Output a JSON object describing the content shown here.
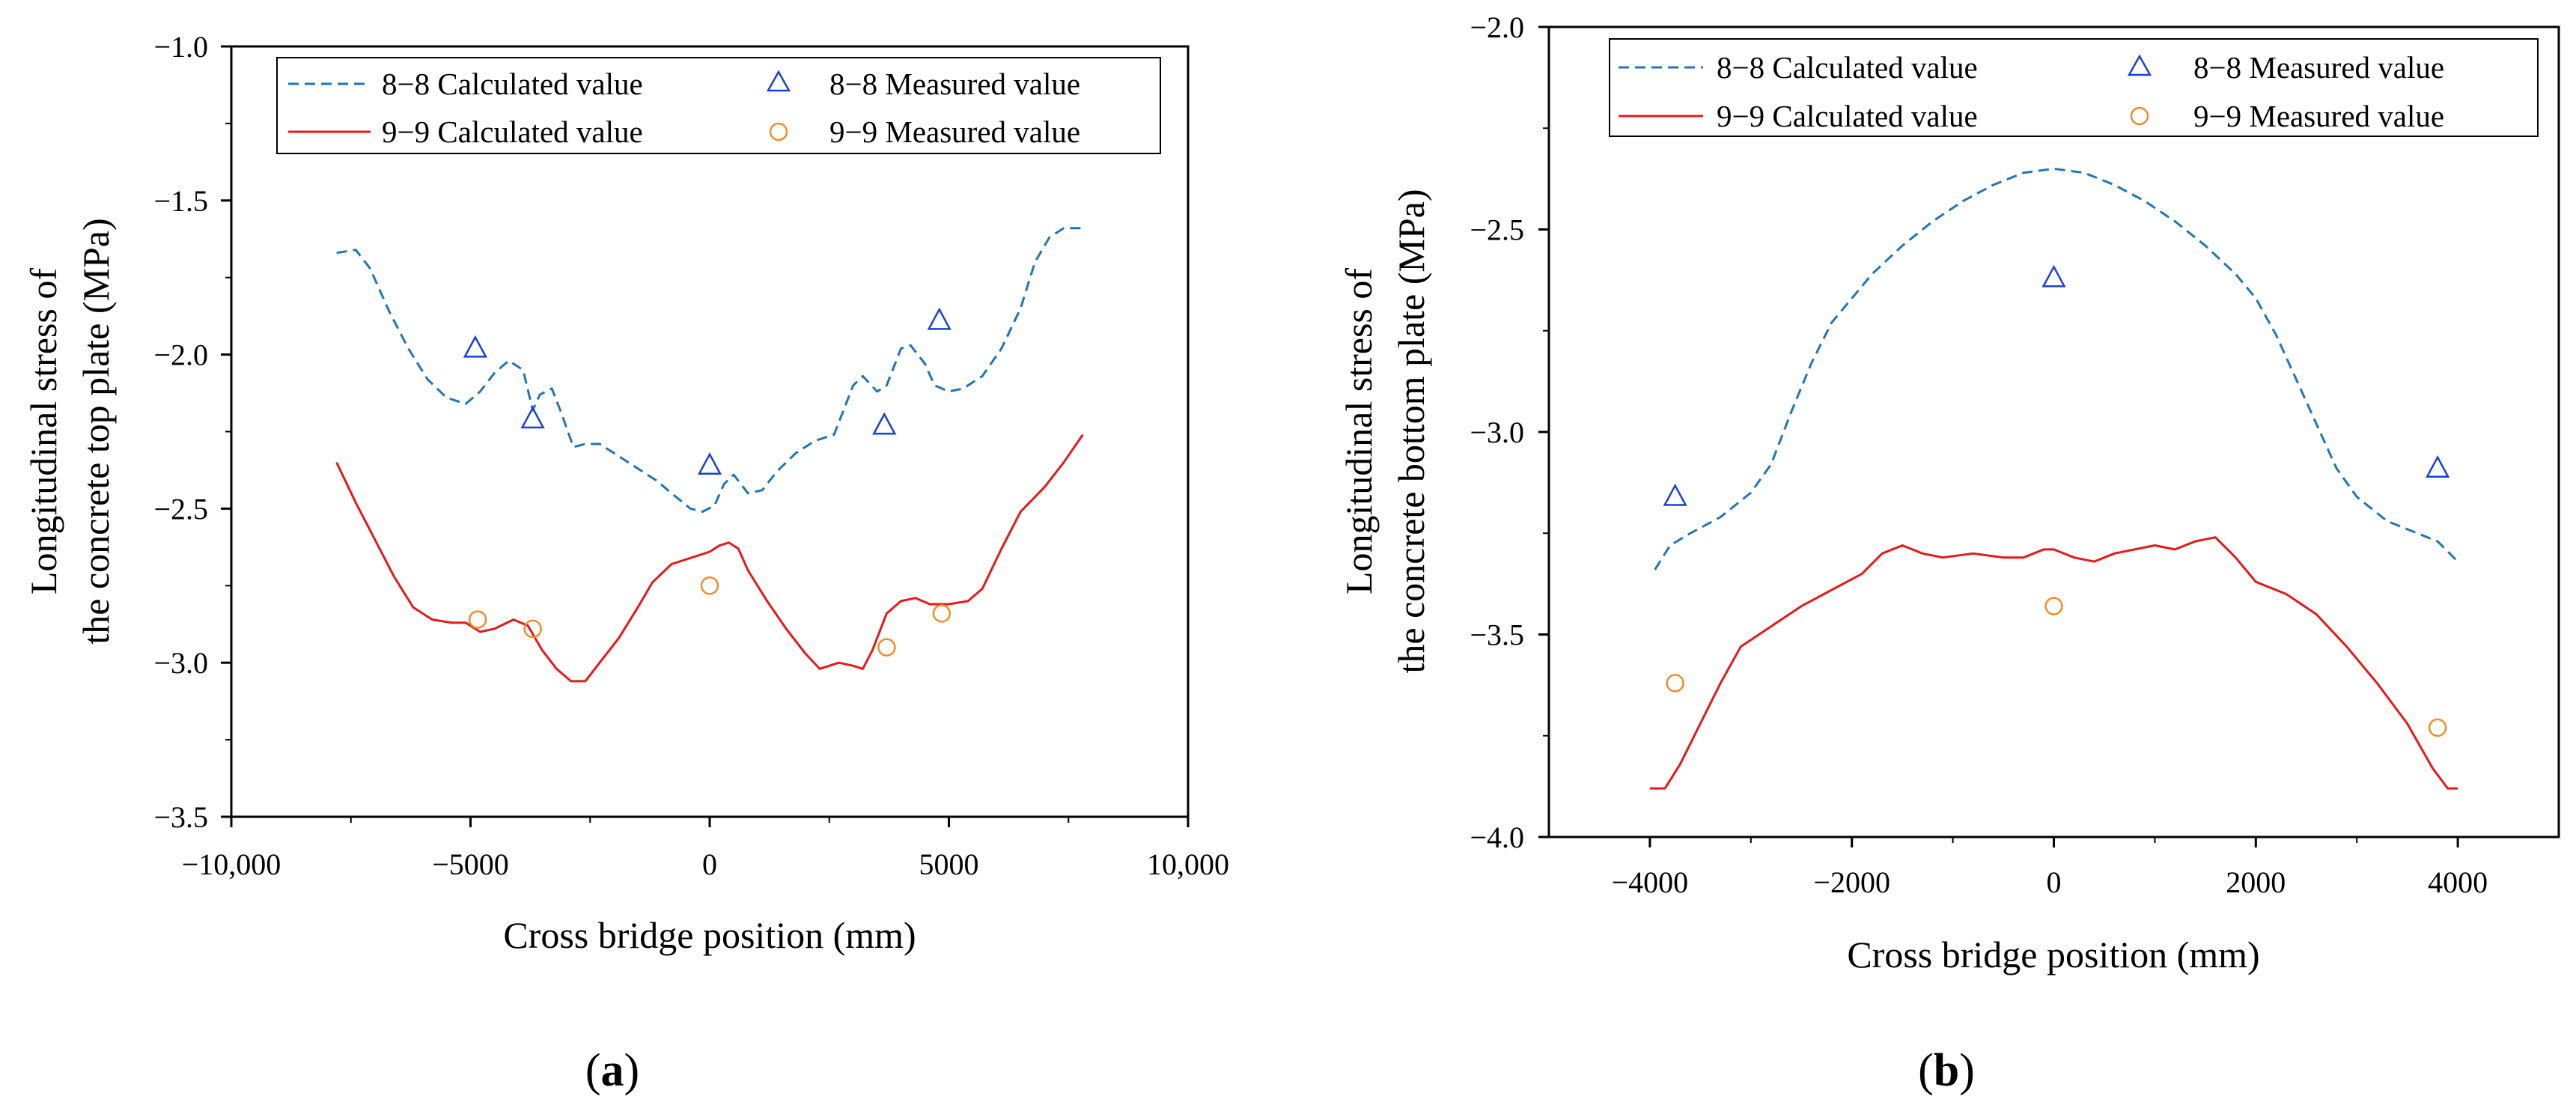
{
  "colors": {
    "calc_8_8": "#1f77b4",
    "calc_9_9": "#e31a1c",
    "meas_8_8": "#1a3fd6",
    "meas_9_9": "#f28c28",
    "axis": "#000000"
  },
  "chart_data": [
    {
      "id": "a",
      "type": "line",
      "panel_label": {
        "open": "(",
        "letter": "a",
        "close": ")"
      },
      "xlabel": "Cross bridge position (mm)",
      "ylabel_line1": "Longitudinal stress of",
      "ylabel_line2": "the concrete top plate (MPa)",
      "xlim": [
        -10000,
        10000
      ],
      "ylim": [
        -3.5,
        -1.0
      ],
      "xticks": [
        -10000,
        -5000,
        0,
        5000,
        10000
      ],
      "xtick_labels": [
        "−10,000",
        "−5000",
        "0",
        "5000",
        "10,000"
      ],
      "yticks": [
        -3.5,
        -3.0,
        -2.5,
        -2.0,
        -1.5,
        -1.0
      ],
      "ytick_labels": [
        "−3.5",
        "−3.0",
        "−2.5",
        "−2.0",
        "−1.5",
        "−1.0"
      ],
      "legend_position": "top-right",
      "series": [
        {
          "name": "8−8 Calculated value",
          "kind": "dashed-line",
          "color_key": "calc_8_8",
          "points": [
            [
              -7800,
              -1.67
            ],
            [
              -7400,
              -1.66
            ],
            [
              -7100,
              -1.72
            ],
            [
              -6700,
              -1.86
            ],
            [
              -6300,
              -1.98
            ],
            [
              -5900,
              -2.08
            ],
            [
              -5500,
              -2.14
            ],
            [
              -5100,
              -2.16
            ],
            [
              -4800,
              -2.12
            ],
            [
              -4500,
              -2.06
            ],
            [
              -4200,
              -2.02
            ],
            [
              -3900,
              -2.05
            ],
            [
              -3700,
              -2.18
            ],
            [
              -3550,
              -2.13
            ],
            [
              -3300,
              -2.11
            ],
            [
              -3100,
              -2.19
            ],
            [
              -2850,
              -2.3
            ],
            [
              -2600,
              -2.29
            ],
            [
              -2300,
              -2.29
            ],
            [
              -1900,
              -2.33
            ],
            [
              -1500,
              -2.37
            ],
            [
              -1100,
              -2.41
            ],
            [
              -800,
              -2.45
            ],
            [
              -400,
              -2.5
            ],
            [
              -150,
              -2.51
            ],
            [
              100,
              -2.49
            ],
            [
              300,
              -2.42
            ],
            [
              500,
              -2.39
            ],
            [
              800,
              -2.45
            ],
            [
              1100,
              -2.44
            ],
            [
              1400,
              -2.38
            ],
            [
              1800,
              -2.32
            ],
            [
              2200,
              -2.28
            ],
            [
              2600,
              -2.26
            ],
            [
              3000,
              -2.1
            ],
            [
              3200,
              -2.07
            ],
            [
              3500,
              -2.12
            ],
            [
              3700,
              -2.1
            ],
            [
              4000,
              -1.98
            ],
            [
              4200,
              -1.97
            ],
            [
              4500,
              -2.03
            ],
            [
              4700,
              -2.1
            ],
            [
              5000,
              -2.12
            ],
            [
              5300,
              -2.11
            ],
            [
              5700,
              -2.07
            ],
            [
              6100,
              -1.98
            ],
            [
              6500,
              -1.85
            ],
            [
              6800,
              -1.7
            ],
            [
              7100,
              -1.62
            ],
            [
              7400,
              -1.59
            ],
            [
              7800,
              -1.59
            ]
          ]
        },
        {
          "name": "9−9 Calculated value",
          "kind": "solid-line",
          "color_key": "calc_9_9",
          "points": [
            [
              -7800,
              -2.35
            ],
            [
              -7400,
              -2.48
            ],
            [
              -7000,
              -2.6
            ],
            [
              -6600,
              -2.72
            ],
            [
              -6200,
              -2.82
            ],
            [
              -5800,
              -2.86
            ],
            [
              -5400,
              -2.87
            ],
            [
              -5100,
              -2.87
            ],
            [
              -4800,
              -2.9
            ],
            [
              -4500,
              -2.89
            ],
            [
              -4100,
              -2.86
            ],
            [
              -3800,
              -2.88
            ],
            [
              -3500,
              -2.96
            ],
            [
              -3200,
              -3.02
            ],
            [
              -2900,
              -3.06
            ],
            [
              -2600,
              -3.06
            ],
            [
              -2300,
              -3.0
            ],
            [
              -1900,
              -2.92
            ],
            [
              -1500,
              -2.82
            ],
            [
              -1200,
              -2.74
            ],
            [
              -800,
              -2.68
            ],
            [
              -400,
              -2.66
            ],
            [
              0,
              -2.64
            ],
            [
              200,
              -2.62
            ],
            [
              400,
              -2.61
            ],
            [
              600,
              -2.63
            ],
            [
              800,
              -2.7
            ],
            [
              1200,
              -2.8
            ],
            [
              1600,
              -2.89
            ],
            [
              2000,
              -2.97
            ],
            [
              2300,
              -3.02
            ],
            [
              2700,
              -3.0
            ],
            [
              3000,
              -3.01
            ],
            [
              3200,
              -3.02
            ],
            [
              3400,
              -2.96
            ],
            [
              3700,
              -2.84
            ],
            [
              4000,
              -2.8
            ],
            [
              4300,
              -2.79
            ],
            [
              4600,
              -2.81
            ],
            [
              5000,
              -2.81
            ],
            [
              5400,
              -2.8
            ],
            [
              5700,
              -2.76
            ],
            [
              6100,
              -2.63
            ],
            [
              6500,
              -2.51
            ],
            [
              7000,
              -2.43
            ],
            [
              7400,
              -2.35
            ],
            [
              7800,
              -2.26
            ]
          ]
        },
        {
          "name": "8−8 Measured value",
          "kind": "triangle-markers",
          "color_key": "meas_8_8",
          "points": [
            [
              -4900,
              -1.98
            ],
            [
              -3700,
              -2.21
            ],
            [
              0,
              -2.36
            ],
            [
              3650,
              -2.23
            ],
            [
              4800,
              -1.89
            ]
          ]
        },
        {
          "name": "9−9 Measured value",
          "kind": "circle-markers",
          "color_key": "meas_9_9",
          "points": [
            [
              -4850,
              -2.86
            ],
            [
              -3700,
              -2.89
            ],
            [
              0,
              -2.75
            ],
            [
              3700,
              -2.95
            ],
            [
              4850,
              -2.84
            ]
          ]
        }
      ]
    },
    {
      "id": "b",
      "type": "line",
      "panel_label": {
        "open": "(",
        "letter": "b",
        "close": ")"
      },
      "xlabel": "Cross bridge position (mm)",
      "ylabel_line1": "Longitudinal stress of",
      "ylabel_line2": "the concrete bottom plate (MPa)",
      "xlim": [
        -5000,
        5000
      ],
      "ylim": [
        -4.0,
        -2.0
      ],
      "xticks": [
        -4000,
        -2000,
        0,
        2000,
        4000
      ],
      "xtick_labels": [
        "−4000",
        "−2000",
        "0",
        "2000",
        "4000"
      ],
      "yticks": [
        -4.0,
        -3.5,
        -3.0,
        -2.5,
        -2.0
      ],
      "ytick_labels": [
        "−4.0",
        "−3.5",
        "−3.0",
        "−2.5",
        "−2.0"
      ],
      "legend_position": "top-right",
      "series": [
        {
          "name": "8−8 Calculated value",
          "kind": "dashed-line",
          "color_key": "calc_8_8",
          "points": [
            [
              -3950,
              -3.34
            ],
            [
              -3800,
              -3.28
            ],
            [
              -3600,
              -3.25
            ],
            [
              -3300,
              -3.21
            ],
            [
              -3000,
              -3.15
            ],
            [
              -2800,
              -3.08
            ],
            [
              -2600,
              -2.95
            ],
            [
              -2400,
              -2.83
            ],
            [
              -2200,
              -2.73
            ],
            [
              -2000,
              -2.67
            ],
            [
              -1800,
              -2.61
            ],
            [
              -1500,
              -2.54
            ],
            [
              -1200,
              -2.48
            ],
            [
              -900,
              -2.43
            ],
            [
              -600,
              -2.39
            ],
            [
              -300,
              -2.36
            ],
            [
              0,
              -2.35
            ],
            [
              300,
              -2.36
            ],
            [
              600,
              -2.39
            ],
            [
              900,
              -2.43
            ],
            [
              1200,
              -2.48
            ],
            [
              1500,
              -2.54
            ],
            [
              1800,
              -2.61
            ],
            [
              2000,
              -2.67
            ],
            [
              2200,
              -2.76
            ],
            [
              2400,
              -2.87
            ],
            [
              2600,
              -2.98
            ],
            [
              2800,
              -3.09
            ],
            [
              3000,
              -3.16
            ],
            [
              3300,
              -3.22
            ],
            [
              3600,
              -3.25
            ],
            [
              3800,
              -3.27
            ],
            [
              4000,
              -3.32
            ]
          ]
        },
        {
          "name": "9−9 Calculated value",
          "kind": "solid-line",
          "color_key": "calc_9_9",
          "points": [
            [
              -4000,
              -3.88
            ],
            [
              -3850,
              -3.88
            ],
            [
              -3700,
              -3.82
            ],
            [
              -3500,
              -3.72
            ],
            [
              -3300,
              -3.62
            ],
            [
              -3100,
              -3.53
            ],
            [
              -2800,
              -3.48
            ],
            [
              -2500,
              -3.43
            ],
            [
              -2200,
              -3.39
            ],
            [
              -1900,
              -3.35
            ],
            [
              -1700,
              -3.3
            ],
            [
              -1500,
              -3.28
            ],
            [
              -1300,
              -3.3
            ],
            [
              -1100,
              -3.31
            ],
            [
              -800,
              -3.3
            ],
            [
              -500,
              -3.31
            ],
            [
              -300,
              -3.31
            ],
            [
              -100,
              -3.29
            ],
            [
              0,
              -3.29
            ],
            [
              200,
              -3.31
            ],
            [
              400,
              -3.32
            ],
            [
              600,
              -3.3
            ],
            [
              800,
              -3.29
            ],
            [
              1000,
              -3.28
            ],
            [
              1200,
              -3.29
            ],
            [
              1400,
              -3.27
            ],
            [
              1600,
              -3.26
            ],
            [
              1800,
              -3.31
            ],
            [
              2000,
              -3.37
            ],
            [
              2300,
              -3.4
            ],
            [
              2600,
              -3.45
            ],
            [
              2900,
              -3.53
            ],
            [
              3200,
              -3.62
            ],
            [
              3500,
              -3.72
            ],
            [
              3750,
              -3.83
            ],
            [
              3900,
              -3.88
            ],
            [
              4000,
              -3.88
            ]
          ]
        },
        {
          "name": "8−8 Measured value",
          "kind": "triangle-markers",
          "color_key": "meas_8_8",
          "points": [
            [
              -3750,
              -3.16
            ],
            [
              0,
              -2.62
            ],
            [
              3800,
              -3.09
            ]
          ]
        },
        {
          "name": "9−9 Measured value",
          "kind": "circle-markers",
          "color_key": "meas_9_9",
          "points": [
            [
              -3750,
              -3.62
            ],
            [
              0,
              -3.43
            ],
            [
              3800,
              -3.73
            ]
          ]
        }
      ]
    }
  ]
}
